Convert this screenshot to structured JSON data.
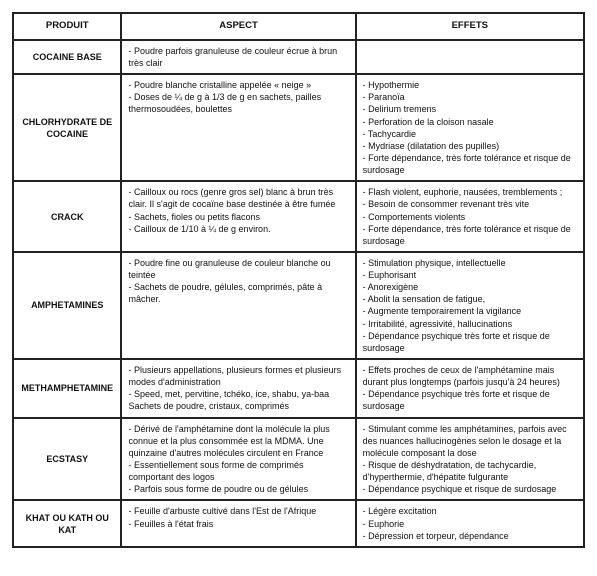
{
  "table": {
    "headers": {
      "product": "PRODUIT",
      "aspect": "ASPECT",
      "effets": "EFFETS"
    },
    "rows": [
      {
        "product": "COCAINE BASE",
        "aspect": [
          "- Poudre parfois granuleuse de couleur écrue à brun très clair"
        ],
        "effets": []
      },
      {
        "product": "CHLORHYDRATE DE COCAINE",
        "aspect": [
          "- Poudre blanche cristalline appelée « neige »",
          "- Doses de ¼ de g à 1/3 de g en sachets, pailles thermosoudées, boulettes"
        ],
        "effets": [
          "- Hypothermie",
          "- Paranoïa",
          "- Delirium tremens",
          "- Perforation de la cloison nasale",
          "- Tachycardie",
          "- Mydriase (dilatation des pupilles)",
          "- Forte dépendance, très forte tolérance et risque de surdosage"
        ]
      },
      {
        "product": "CRACK",
        "aspect": [
          "- Cailloux ou rocs (genre gros sel) blanc à brun très clair. Il s'agit de cocaïne base destinée à être fumée",
          "- Sachets, fioles ou petits flacons",
          "- Cailloux de 1/10 à ¼ de g environ."
        ],
        "effets": [
          "- Flash violent, euphorie, nausées, tremblements ;",
          "- Besoin de consommer revenant très vite",
          "- Comportements violents",
          "- Forte dépendance, très forte tolérance et risque de surdosage"
        ]
      },
      {
        "product": "AMPHETAMINES",
        "aspect": [
          "- Poudre fine ou granuleuse de couleur blanche ou teintée",
          "- Sachets de poudre, gélules, comprimés, pâte à mâcher."
        ],
        "effets": [
          "- Stimulation physique, intellectuelle",
          "- Euphorisant",
          "- Anorexigène",
          "- Abolit la sensation de fatigue,",
          "- Augmente temporairement la vigilance",
          "- Irritabilité, agressivité, hallucinations",
          "- Dépendance psychique très forte et risque de surdosage"
        ]
      },
      {
        "product": "METHAMPHETAMINE",
        "aspect": [
          "- Plusieurs appellations, plusieurs formes et plusieurs modes d'administration",
          "- Speed, met, pervitine, tchéko, ice, shabu, ya-baa",
          "Sachets de poudre, cristaux, comprimés"
        ],
        "effets": [
          "- Effets proches de ceux de l'amphétamine mais durant plus longtemps (parfois jusqu'à 24 heures)",
          "- Dépendance psychique très forte et risque de surdosage"
        ]
      },
      {
        "product": "ECSTASY",
        "aspect": [
          "- Dérivé de l'amphétamine dont la molécule la plus connue et la plus consommée est la MDMA. Une quinzaine d'autres molécules circulent en France",
          "- Essentiellement sous forme de comprimés comportant des logos",
          "- Parfois sous forme de poudre ou de gélules"
        ],
        "effets": [
          "- Stimulant comme les amphétamines, parfois avec des nuances hallucinogènes selon le dosage et la molécule composant la dose",
          "- Risque de déshydratation, de tachycardie, d'hyperthermie, d'hépatite fulgurante",
          "- Dépendance psychique et risque de surdosage"
        ]
      },
      {
        "product": "KHAT OU KATH OU KAT",
        "aspect": [
          "- Feuille d'arbuste cultivé dans l'Est de l'Afrique",
          "- Feuilles à l'état frais"
        ],
        "effets": [
          "- Légère excitation",
          "- Euphorie",
          "- Dépression et torpeur, dépendance"
        ]
      }
    ]
  },
  "style": {
    "background_color": "#ffffff",
    "border_color": "#222222",
    "text_color": "#111111",
    "header_fontsize_pt": 9.5,
    "body_fontsize_pt": 9,
    "font_family": "Arial, Helvetica, sans-serif"
  }
}
